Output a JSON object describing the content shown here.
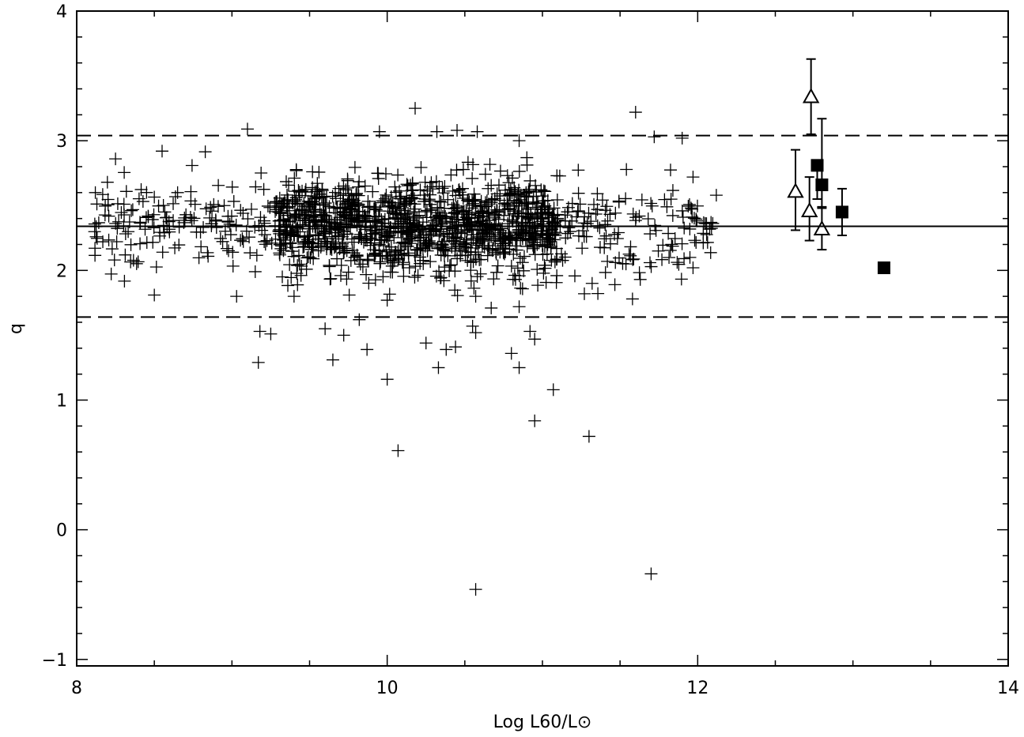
{
  "chart_data": {
    "type": "scatter",
    "xlabel": "Log L60/L⊙",
    "ylabel": "q",
    "xlim": [
      8,
      14
    ],
    "ylim": [
      -1.05,
      4
    ],
    "x_ticks": [
      8,
      10,
      12,
      14
    ],
    "x_tick_labels": [
      "8",
      "10",
      "12",
      "14"
    ],
    "y_ticks": [
      -1,
      0,
      1,
      2,
      3,
      4
    ],
    "y_tick_labels": [
      "−1",
      "0",
      "1",
      "2",
      "3",
      "4"
    ],
    "grid": false,
    "reference_lines": [
      {
        "style": "solid",
        "y": 2.34
      },
      {
        "style": "dashed",
        "y": 3.04
      },
      {
        "style": "dashed",
        "y": 1.64
      }
    ],
    "series": [
      {
        "marker": "plus",
        "cloud": {
          "x_range": [
            8.1,
            12.1
          ],
          "q_center": 2.34,
          "q_spread": 0.26,
          "n": 1500
        },
        "points": [
          [
            10.18,
            3.25
          ],
          [
            11.6,
            3.22
          ],
          [
            9.1,
            3.09
          ],
          [
            9.95,
            3.07
          ],
          [
            10.32,
            3.07
          ],
          [
            10.45,
            3.08
          ],
          [
            10.58,
            3.07
          ],
          [
            11.72,
            3.03
          ],
          [
            11.9,
            3.02
          ],
          [
            10.85,
            3.0
          ],
          [
            8.25,
            2.86
          ],
          [
            8.55,
            2.92
          ],
          [
            8.65,
            2.6
          ],
          [
            8.12,
            2.6
          ],
          [
            8.5,
            1.81
          ],
          [
            8.95,
            2.5
          ],
          [
            12.12,
            2.58
          ],
          [
            11.97,
            2.72
          ],
          [
            11.95,
            2.1
          ],
          [
            11.97,
            2.02
          ],
          [
            9.03,
            1.8
          ],
          [
            9.15,
            1.99
          ],
          [
            9.18,
            1.53
          ],
          [
            9.25,
            1.51
          ],
          [
            9.17,
            1.29
          ],
          [
            9.4,
            1.8
          ],
          [
            9.6,
            1.55
          ],
          [
            9.65,
            1.31
          ],
          [
            9.72,
            1.5
          ],
          [
            9.82,
            1.62
          ],
          [
            9.87,
            1.39
          ],
          [
            10.0,
            1.77
          ],
          [
            10.0,
            1.16
          ],
          [
            10.07,
            0.61
          ],
          [
            10.25,
            1.44
          ],
          [
            10.33,
            1.25
          ],
          [
            10.38,
            1.39
          ],
          [
            10.44,
            1.41
          ],
          [
            10.55,
            1.57
          ],
          [
            10.57,
            1.52
          ],
          [
            10.57,
            1.8
          ],
          [
            10.67,
            1.71
          ],
          [
            10.8,
            1.36
          ],
          [
            10.85,
            1.72
          ],
          [
            10.85,
            1.25
          ],
          [
            10.92,
            1.53
          ],
          [
            10.95,
            1.47
          ],
          [
            10.95,
            0.84
          ],
          [
            11.07,
            1.08
          ],
          [
            11.27,
            1.82
          ],
          [
            11.3,
            0.72
          ],
          [
            11.32,
            1.9
          ],
          [
            11.58,
            1.78
          ],
          [
            11.63,
            1.93
          ],
          [
            10.57,
            -0.46
          ],
          [
            11.7,
            -0.34
          ]
        ]
      },
      {
        "marker": "open-triangle",
        "points": [
          {
            "x": 12.63,
            "y": 2.61,
            "err_low": 2.31,
            "err_high": 2.93
          },
          {
            "x": 12.73,
            "y": 3.34,
            "err_low": 3.05,
            "err_high": 3.63
          },
          {
            "x": 12.72,
            "y": 2.46,
            "err_low": 2.23,
            "err_high": 2.72
          },
          {
            "x": 12.8,
            "y": 2.32,
            "err_low": 2.16,
            "err_high": 2.49
          }
        ]
      },
      {
        "marker": "filled-square",
        "points": [
          {
            "x": 12.77,
            "y": 2.81,
            "err_low": 2.55,
            "err_high": 2.81
          },
          {
            "x": 12.8,
            "y": 2.66,
            "err_low": 2.48,
            "err_high": 3.17
          },
          {
            "x": 12.93,
            "y": 2.45,
            "err_low": 2.27,
            "err_high": 2.63
          },
          {
            "x": 13.2,
            "y": 2.02,
            "err_low": 1.98,
            "err_high": 2.06
          }
        ]
      }
    ]
  }
}
